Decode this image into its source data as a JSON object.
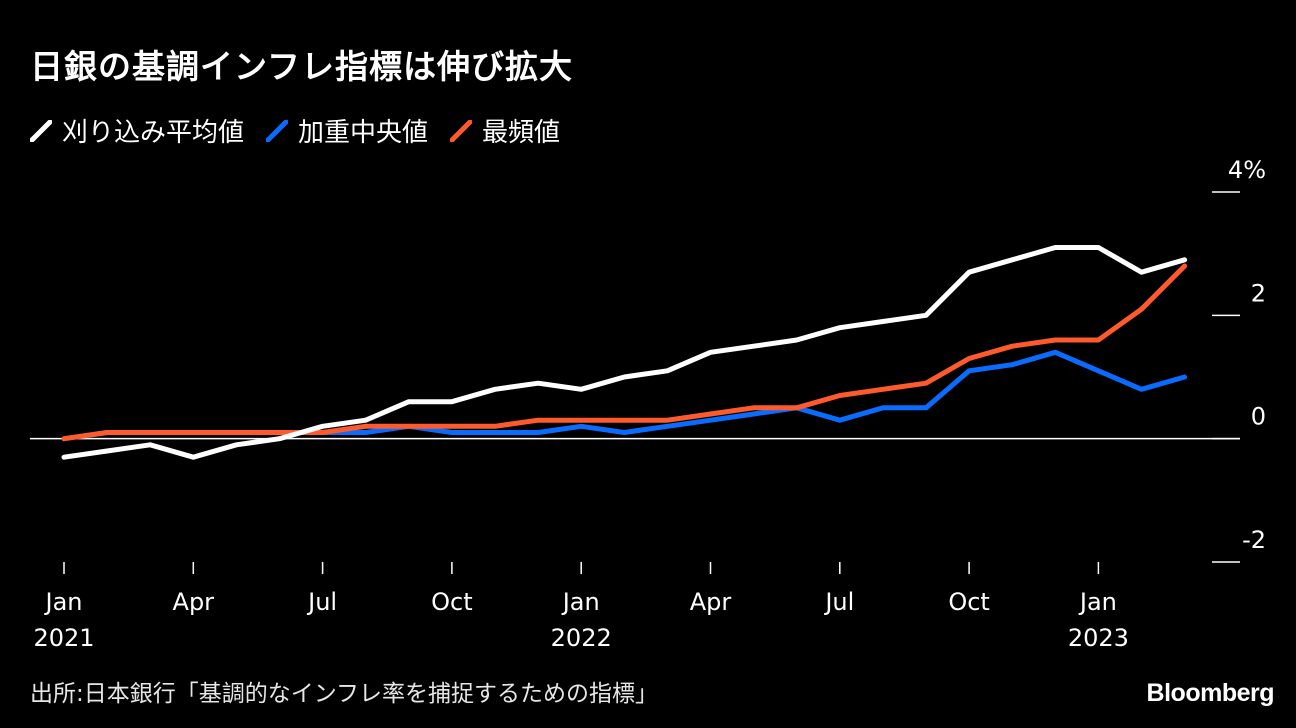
{
  "header": {
    "title": "日銀の基調インフレ指標は伸び拡大"
  },
  "legend": {
    "items": [
      {
        "label": "刈り込み平均値",
        "color": "#ffffff"
      },
      {
        "label": "加重中央値",
        "color": "#0a6cff"
      },
      {
        "label": "最頻値",
        "color": "#ff5a2b"
      }
    ]
  },
  "footer": {
    "source": "出所:日本銀行「基調的なインフレ率を捕捉するための指標」",
    "brand": "Bloomberg"
  },
  "chart_data": {
    "type": "line",
    "title": "日銀の基調インフレ指標は伸び拡大",
    "x": [
      "2021-01",
      "2021-02",
      "2021-03",
      "2021-04",
      "2021-05",
      "2021-06",
      "2021-07",
      "2021-08",
      "2021-09",
      "2021-10",
      "2021-11",
      "2021-12",
      "2022-01",
      "2022-02",
      "2022-03",
      "2022-04",
      "2022-05",
      "2022-06",
      "2022-07",
      "2022-08",
      "2022-09",
      "2022-10",
      "2022-11",
      "2022-12",
      "2023-01",
      "2023-02",
      "2023-03"
    ],
    "series": [
      {
        "name": "刈り込み平均値",
        "color": "#ffffff",
        "values": [
          -0.3,
          -0.2,
          -0.1,
          -0.3,
          -0.1,
          0.0,
          0.2,
          0.3,
          0.6,
          0.6,
          0.8,
          0.9,
          0.8,
          1.0,
          1.1,
          1.4,
          1.5,
          1.6,
          1.8,
          1.9,
          2.0,
          2.7,
          2.9,
          3.1,
          3.1,
          2.7,
          2.9
        ]
      },
      {
        "name": "加重中央値",
        "color": "#0a6cff",
        "values": [
          0.0,
          0.1,
          0.1,
          0.1,
          0.1,
          0.1,
          0.1,
          0.1,
          0.2,
          0.1,
          0.1,
          0.1,
          0.2,
          0.1,
          0.2,
          0.3,
          0.4,
          0.5,
          0.3,
          0.5,
          0.5,
          1.1,
          1.2,
          1.4,
          1.1,
          0.8,
          1.0
        ]
      },
      {
        "name": "最頻値",
        "color": "#ff5a2b",
        "values": [
          0.0,
          0.1,
          0.1,
          0.1,
          0.1,
          0.1,
          0.1,
          0.2,
          0.2,
          0.2,
          0.2,
          0.3,
          0.3,
          0.3,
          0.3,
          0.4,
          0.5,
          0.5,
          0.7,
          0.8,
          0.9,
          1.3,
          1.5,
          1.6,
          1.6,
          2.1,
          2.8
        ]
      }
    ],
    "ylim": [
      -2,
      4
    ],
    "yticks": [
      -2,
      0,
      2,
      4
    ],
    "ytick_labels": [
      "-2",
      "0",
      "2",
      "4%"
    ],
    "xticks": [
      {
        "x": "2021-01",
        "label": "Jan",
        "year": "2021"
      },
      {
        "x": "2021-04",
        "label": "Apr",
        "year": ""
      },
      {
        "x": "2021-07",
        "label": "Jul",
        "year": ""
      },
      {
        "x": "2021-10",
        "label": "Oct",
        "year": ""
      },
      {
        "x": "2022-01",
        "label": "Jan",
        "year": "2022"
      },
      {
        "x": "2022-04",
        "label": "Apr",
        "year": ""
      },
      {
        "x": "2022-07",
        "label": "Jul",
        "year": ""
      },
      {
        "x": "2022-10",
        "label": "Oct",
        "year": ""
      },
      {
        "x": "2023-01",
        "label": "Jan",
        "year": "2023"
      }
    ],
    "xlabel": "",
    "ylabel": "",
    "grid": false,
    "legend_position": "top-left",
    "zero_line": true
  }
}
